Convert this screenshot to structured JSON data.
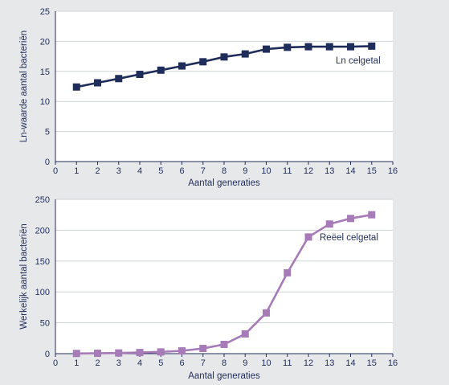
{
  "colors": {
    "background": "#e7e8e9",
    "plot_background": "#ffffff",
    "gridline": "#cfd3d6",
    "text": "#1f2d5a"
  },
  "chart_data": [
    {
      "type": "line",
      "xlabel": "Aantal generaties",
      "ylabel": "Ln-waarde aantal bacteriën",
      "xlim": [
        0,
        16
      ],
      "ylim": [
        0,
        25
      ],
      "xticks": [
        "0",
        "1",
        "2",
        "3",
        "4",
        "5",
        "6",
        "7",
        "8",
        "9",
        "10",
        "11",
        "12",
        "13",
        "14",
        "15",
        "16"
      ],
      "yticks": [
        "0",
        "5",
        "10",
        "15",
        "20",
        "25"
      ],
      "grid": true,
      "x": [
        1,
        2,
        3,
        4,
        5,
        6,
        7,
        8,
        9,
        10,
        11,
        12,
        13,
        14,
        15
      ],
      "series": [
        {
          "name": "Ln celgetal",
          "color": "#1f2d5a",
          "marker": "square",
          "values": [
            12.4,
            13.1,
            13.8,
            14.5,
            15.2,
            15.9,
            16.6,
            17.4,
            17.9,
            18.7,
            19.0,
            19.1,
            19.1,
            19.1,
            19.2
          ]
        }
      ]
    },
    {
      "type": "line",
      "xlabel": "Aantal generaties",
      "ylabel": "Werkelijk aantal bacteriën",
      "xlim": [
        0,
        16
      ],
      "ylim": [
        0,
        250
      ],
      "xticks": [
        "0",
        "1",
        "2",
        "3",
        "4",
        "5",
        "6",
        "7",
        "8",
        "9",
        "10",
        "11",
        "12",
        "13",
        "14",
        "15",
        "16"
      ],
      "yticks": [
        "0",
        "50",
        "100",
        "150",
        "200",
        "250"
      ],
      "grid": true,
      "x": [
        1,
        2,
        3,
        4,
        5,
        6,
        7,
        8,
        9,
        10,
        11,
        12,
        13,
        14,
        15
      ],
      "series": [
        {
          "name": "Reëel celgetal",
          "color": "#a77ab8",
          "marker": "square",
          "values": [
            0.3,
            0.6,
            1.1,
            1.8,
            2.8,
            4.5,
            8.5,
            15,
            32,
            66,
            131,
            189,
            210,
            219,
            225
          ]
        }
      ]
    }
  ]
}
